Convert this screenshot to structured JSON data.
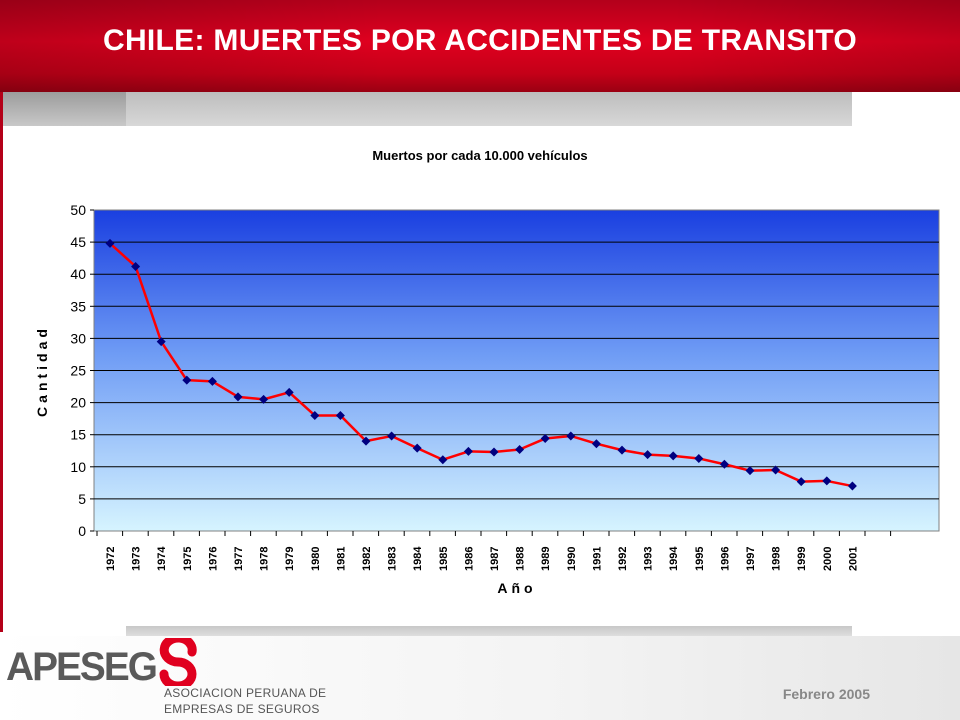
{
  "slide": {
    "title": "CHILE: MUERTES POR ACCIDENTES DE TRANSITO",
    "footer": {
      "logo_text": "APESEG",
      "org_line1": "ASOCIACION PERUANA DE",
      "org_line2": "EMPRESAS DE SEGUROS",
      "date": "Febrero 2005"
    }
  },
  "colors": {
    "header_red": "#d9001e",
    "line": "#ff0000",
    "marker": "#000080",
    "plot_top": "#1a3fe0",
    "plot_bottom": "#d6f4ff"
  },
  "chart_data": {
    "type": "line",
    "title": "Muertos por cada 10.000 vehículos",
    "xlabel": "Año",
    "ylabel": "Cantidad",
    "ylim": [
      0,
      50
    ],
    "yticks": [
      0,
      5,
      10,
      15,
      20,
      25,
      30,
      35,
      40,
      45,
      50
    ],
    "grid": true,
    "categories": [
      "1972",
      "1973",
      "1974",
      "1975",
      "1976",
      "1977",
      "1978",
      "1979",
      "1980",
      "1981",
      "1982",
      "1983",
      "1984",
      "1985",
      "1986",
      "1987",
      "1988",
      "1989",
      "1990",
      "1991",
      "1992",
      "1993",
      "1994",
      "1995",
      "1996",
      "1997",
      "1998",
      "1999",
      "2000",
      "2001"
    ],
    "values": [
      44.8,
      41.2,
      29.5,
      23.5,
      23.3,
      20.9,
      20.5,
      21.6,
      18.0,
      18.0,
      14.0,
      14.8,
      12.9,
      11.1,
      12.4,
      12.3,
      12.7,
      14.4,
      14.8,
      13.6,
      12.6,
      11.9,
      11.7,
      11.3,
      10.4,
      9.4,
      9.5,
      7.7,
      7.8,
      7.0
    ]
  }
}
